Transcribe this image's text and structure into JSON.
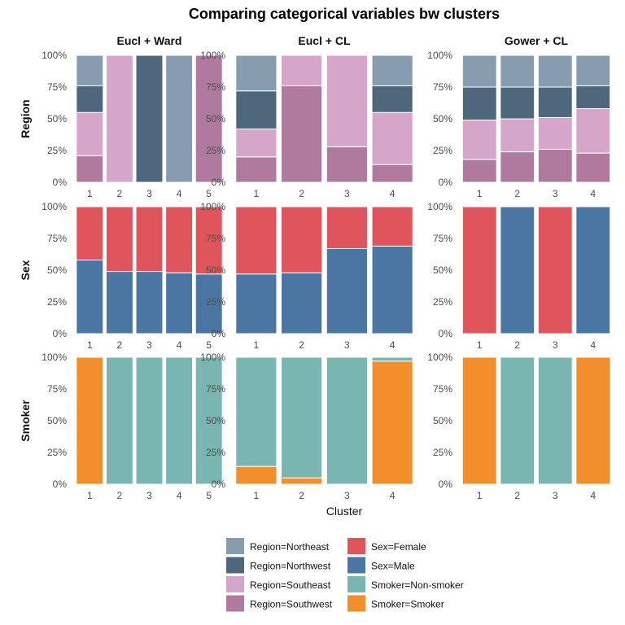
{
  "chart_data": {
    "type": "bar",
    "stacked": true,
    "title": "Comparing categorical variables bw clusters",
    "xlabel": "Cluster",
    "ylabel": "",
    "y_ticks": [
      "0%",
      "25%",
      "50%",
      "75%",
      "100%"
    ],
    "ylim": [
      0,
      1
    ],
    "grid": false,
    "legend_position": "bottom",
    "columns": [
      "Eucl + Ward",
      "Eucl + CL",
      "Gower + CL"
    ],
    "rows": [
      "Region",
      "Sex",
      "Smoker"
    ],
    "colors": {
      "Region=Northeast": "#889cb0",
      "Region=Northwest": "#4f677d",
      "Region=Southeast": "#d5a6c9",
      "Region=Southwest": "#b07a9f",
      "Sex=Female": "#e0555b",
      "Sex=Male": "#4b76a4",
      "Smoker=Non-smoker": "#7ab6b1",
      "Smoker=Smoker": "#f28e2b"
    },
    "legend": [
      [
        "Region=Northeast",
        "Region=Northwest",
        "Region=Southeast",
        "Region=Southwest"
      ],
      [
        "Sex=Female",
        "Sex=Male",
        "Smoker=Non-smoker",
        "Smoker=Smoker"
      ]
    ],
    "panels": [
      {
        "row": "Region",
        "column": "Eucl + Ward",
        "categories": [
          "1",
          "2",
          "3",
          "4",
          "5"
        ],
        "series": [
          {
            "name": "Region=Southwest",
            "values": [
              0.21,
              0,
              0,
              0,
              1
            ]
          },
          {
            "name": "Region=Southeast",
            "values": [
              0.34,
              1,
              0,
              0,
              0
            ]
          },
          {
            "name": "Region=Northwest",
            "values": [
              0.21,
              0,
              1,
              0,
              0
            ]
          },
          {
            "name": "Region=Northeast",
            "values": [
              0.24,
              0,
              0,
              1,
              0
            ]
          }
        ]
      },
      {
        "row": "Region",
        "column": "Eucl + CL",
        "categories": [
          "1",
          "2",
          "3",
          "4"
        ],
        "series": [
          {
            "name": "Region=Southwest",
            "values": [
              0.2,
              0.76,
              0.28,
              0.14
            ]
          },
          {
            "name": "Region=Southeast",
            "values": [
              0.22,
              0.24,
              0.72,
              0.41
            ]
          },
          {
            "name": "Region=Northwest",
            "values": [
              0.3,
              0,
              0,
              0.21
            ]
          },
          {
            "name": "Region=Northeast",
            "values": [
              0.28,
              0,
              0,
              0.24
            ]
          }
        ]
      },
      {
        "row": "Region",
        "column": "Gower + CL",
        "categories": [
          "1",
          "2",
          "3",
          "4"
        ],
        "series": [
          {
            "name": "Region=Southwest",
            "values": [
              0.18,
              0.24,
              0.26,
              0.23
            ]
          },
          {
            "name": "Region=Southeast",
            "values": [
              0.31,
              0.26,
              0.25,
              0.35
            ]
          },
          {
            "name": "Region=Northwest",
            "values": [
              0.26,
              0.25,
              0.24,
              0.18
            ]
          },
          {
            "name": "Region=Northeast",
            "values": [
              0.25,
              0.25,
              0.25,
              0.24
            ]
          }
        ]
      },
      {
        "row": "Sex",
        "column": "Eucl + Ward",
        "categories": [
          "1",
          "2",
          "3",
          "4",
          "5"
        ],
        "series": [
          {
            "name": "Sex=Male",
            "values": [
              0.58,
              0.49,
              0.49,
              0.48,
              0.47
            ]
          },
          {
            "name": "Sex=Female",
            "values": [
              0.42,
              0.51,
              0.51,
              0.52,
              0.53
            ]
          }
        ]
      },
      {
        "row": "Sex",
        "column": "Eucl + CL",
        "categories": [
          "1",
          "2",
          "3",
          "4"
        ],
        "series": [
          {
            "name": "Sex=Male",
            "values": [
              0.47,
              0.48,
              0.67,
              0.69
            ]
          },
          {
            "name": "Sex=Female",
            "values": [
              0.53,
              0.52,
              0.33,
              0.31
            ]
          }
        ]
      },
      {
        "row": "Sex",
        "column": "Gower + CL",
        "categories": [
          "1",
          "2",
          "3",
          "4"
        ],
        "series": [
          {
            "name": "Sex=Male",
            "values": [
              0,
              1,
              0,
              1
            ]
          },
          {
            "name": "Sex=Female",
            "values": [
              1,
              0,
              1,
              0
            ]
          }
        ]
      },
      {
        "row": "Smoker",
        "column": "Eucl + Ward",
        "categories": [
          "1",
          "2",
          "3",
          "4",
          "5"
        ],
        "series": [
          {
            "name": "Smoker=Smoker",
            "values": [
              1,
              0,
              0,
              0,
              0
            ]
          },
          {
            "name": "Smoker=Non-smoker",
            "values": [
              0,
              1,
              1,
              1,
              1
            ]
          }
        ]
      },
      {
        "row": "Smoker",
        "column": "Eucl + CL",
        "categories": [
          "1",
          "2",
          "3",
          "4"
        ],
        "series": [
          {
            "name": "Smoker=Smoker",
            "values": [
              0.14,
              0.05,
              0,
              0.97
            ]
          },
          {
            "name": "Smoker=Non-smoker",
            "values": [
              0.86,
              0.95,
              1,
              0.03
            ]
          }
        ]
      },
      {
        "row": "Smoker",
        "column": "Gower + CL",
        "categories": [
          "1",
          "2",
          "3",
          "4"
        ],
        "series": [
          {
            "name": "Smoker=Smoker",
            "values": [
              1,
              0,
              0,
              1
            ]
          },
          {
            "name": "Smoker=Non-smoker",
            "values": [
              0,
              1,
              1,
              0
            ]
          }
        ]
      }
    ]
  }
}
